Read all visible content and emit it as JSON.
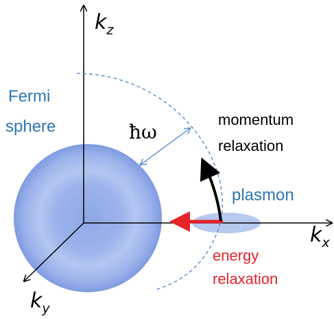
{
  "axes": {
    "z": {
      "base": "k",
      "sub": "z"
    },
    "x": {
      "base": "k",
      "sub": "x"
    },
    "y": {
      "base": "k",
      "sub": "y"
    }
  },
  "labels": {
    "fermi": [
      "Fermi",
      "sphere"
    ],
    "hw": "ħω",
    "momentum": [
      "momentum",
      "relaxation"
    ],
    "plasmon": "plasmon",
    "energy": [
      "energy",
      "relaxation"
    ]
  }
}
